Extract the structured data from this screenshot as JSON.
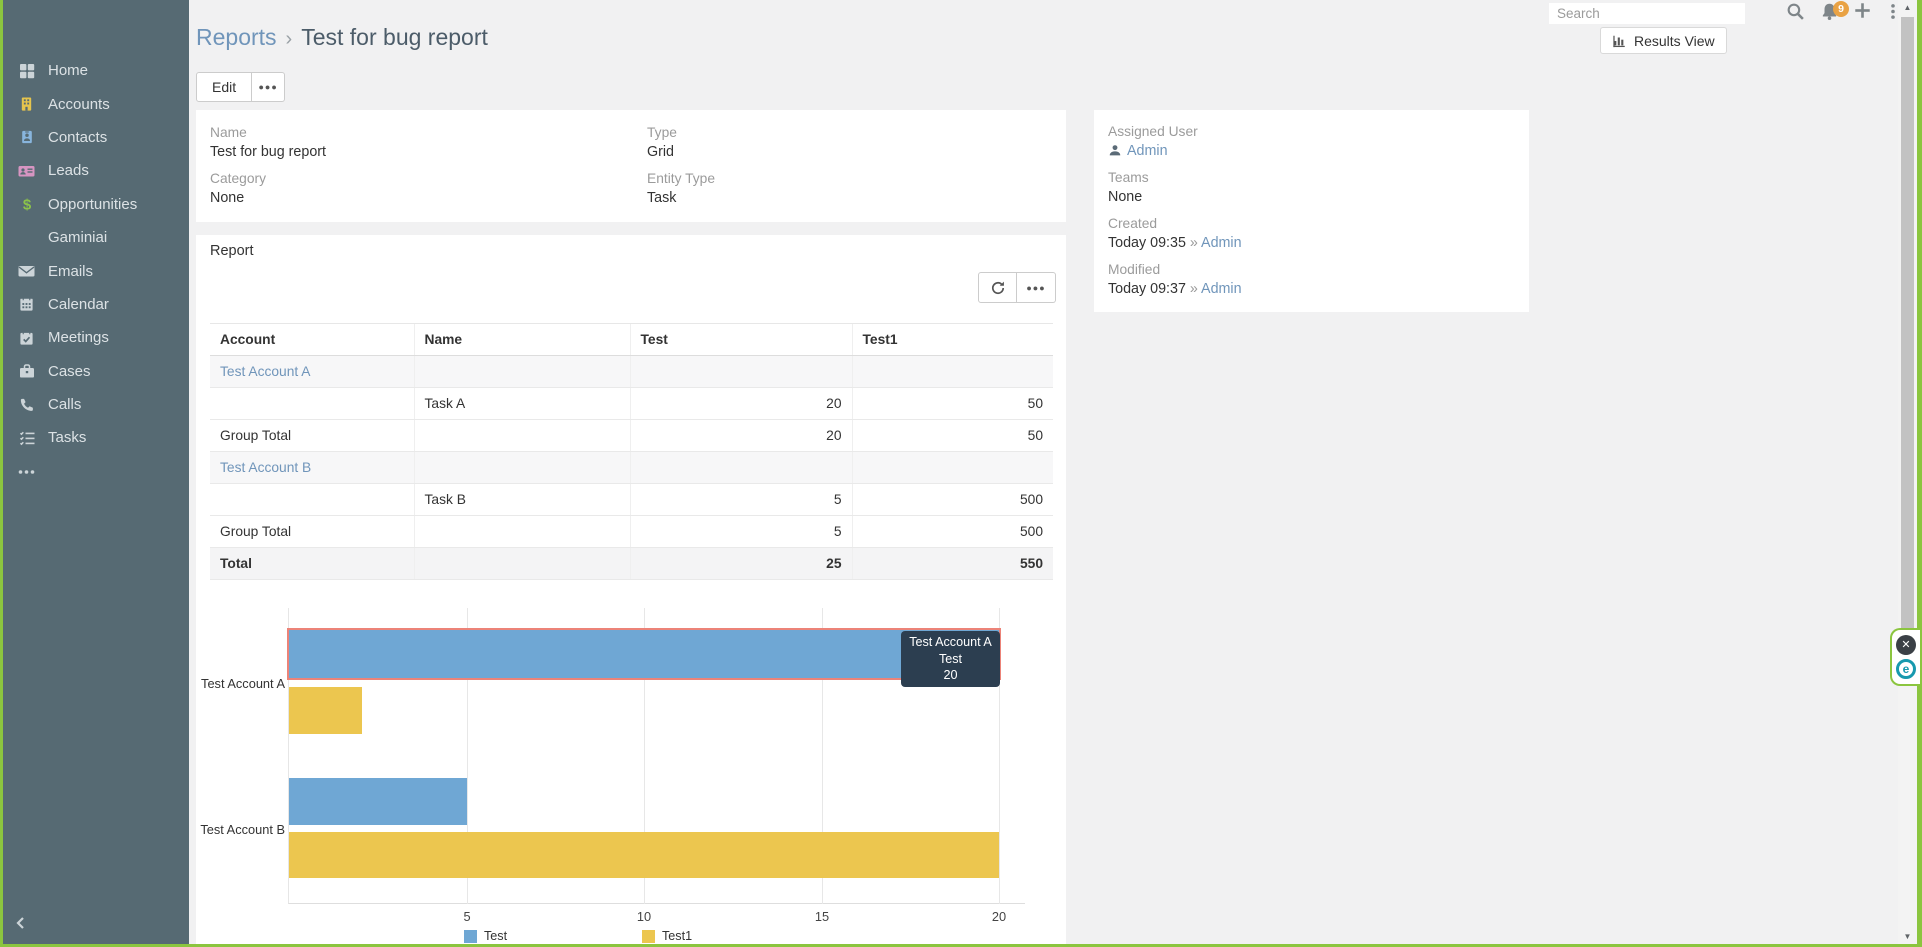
{
  "app": {
    "frame_color": "#8bc53f"
  },
  "sidebar": {
    "items": [
      {
        "label": "Home"
      },
      {
        "label": "Accounts"
      },
      {
        "label": "Contacts"
      },
      {
        "label": "Leads"
      },
      {
        "label": "Opportunities"
      },
      {
        "label": "Gaminiai"
      },
      {
        "label": "Emails"
      },
      {
        "label": "Calendar"
      },
      {
        "label": "Meetings"
      },
      {
        "label": "Cases"
      },
      {
        "label": "Calls"
      },
      {
        "label": "Tasks"
      }
    ]
  },
  "topbar": {
    "search_placeholder": "Search",
    "notifications_badge": "9"
  },
  "page": {
    "breadcrumb": "Reports",
    "breadcrumb_separator": "›",
    "title": "Test for bug report"
  },
  "toolbar": {
    "edit_label": "Edit",
    "more_label": "●●●"
  },
  "results_view": {
    "label": "Results View"
  },
  "overview": {
    "fields": [
      {
        "label": "Name",
        "value": "Test for bug report"
      },
      {
        "label": "Type",
        "value": "Grid"
      },
      {
        "label": "Category",
        "value": "None"
      },
      {
        "label": "Entity Type",
        "value": "Task"
      }
    ]
  },
  "side_panel": {
    "assigned_user": {
      "label": "Assigned User",
      "value": "Admin"
    },
    "teams": {
      "label": "Teams",
      "value": "None"
    },
    "created": {
      "label": "Created",
      "value": "Today 09:35",
      "separator": "»",
      "user": "Admin"
    },
    "modified": {
      "label": "Modified",
      "value": "Today 09:37",
      "separator": "»",
      "user": "Admin"
    }
  },
  "report": {
    "panel_title": "Report",
    "actions_more_label": "●●●"
  },
  "table": {
    "columns": [
      "Account",
      "Name",
      "Test",
      "Test1"
    ],
    "rows": [
      {
        "type": "group",
        "account": "Test Account A",
        "name": "",
        "test": "",
        "test1": ""
      },
      {
        "type": "detail",
        "account": "",
        "name": "Task A",
        "test": "20",
        "test1": "50"
      },
      {
        "type": "subtotal",
        "account": "Group Total",
        "name": "",
        "test": "20",
        "test1": "50"
      },
      {
        "type": "group",
        "account": "Test Account B",
        "name": "",
        "test": "",
        "test1": ""
      },
      {
        "type": "detail",
        "account": "",
        "name": "Task B",
        "test": "5",
        "test1": "500"
      },
      {
        "type": "subtotal",
        "account": "Group Total",
        "name": "",
        "test": "5",
        "test1": "500"
      },
      {
        "type": "total",
        "account": "Total",
        "name": "",
        "test": "25",
        "test1": "550"
      }
    ]
  },
  "chart_data": {
    "type": "bar",
    "orientation": "horizontal",
    "categories": [
      "Test Account A",
      "Test Account B"
    ],
    "series": [
      {
        "name": "Test",
        "color": "#6fa7d4",
        "values": [
          20,
          5
        ],
        "bar_lengths_axis_units": [
          20,
          5
        ]
      },
      {
        "name": "Test1",
        "color": "#ecc64f",
        "values": [
          50,
          500
        ],
        "bar_lengths_axis_units": [
          2.05,
          20
        ]
      }
    ],
    "x_ticks": [
      "5",
      "10",
      "15",
      "20"
    ],
    "xlim": [
      0,
      20.75
    ],
    "grid": "vertical-gridlines",
    "legend_position": "bottom",
    "highlight": {
      "category": "Test Account A",
      "series": "Test"
    },
    "tooltip": {
      "lines": [
        "Test Account A",
        "Test",
        "20"
      ]
    }
  },
  "side_widget": {
    "close_glyph": "✕",
    "logo_letter": "e"
  }
}
